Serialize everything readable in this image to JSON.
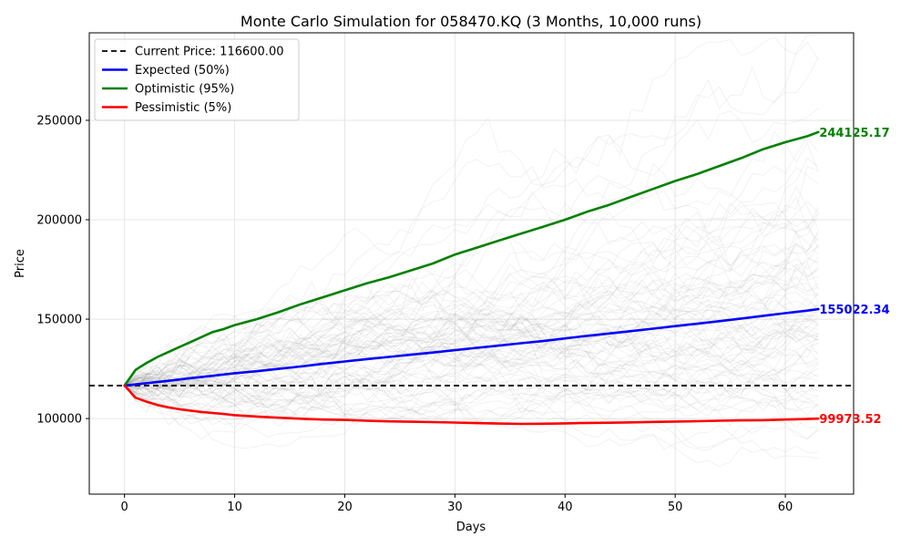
{
  "chart_data": {
    "type": "line",
    "title": "Monte Carlo Simulation for 058470.KQ (3 Months, 10,000 runs)",
    "xlabel": "Days",
    "ylabel": "Price",
    "xlim": [
      -3.2,
      66.2
    ],
    "ylim": [
      62000,
      294000
    ],
    "x_ticks": [
      0,
      10,
      20,
      30,
      40,
      50,
      60
    ],
    "y_ticks": [
      100000,
      150000,
      200000,
      250000
    ],
    "grid": true,
    "legend_position": "upper-left",
    "current_price": {
      "label": "Current Price: 116600.00",
      "value": 116600,
      "color": "#000000",
      "style": "dashed"
    },
    "series": [
      {
        "name": "Expected (50%)",
        "color": "#0000ff",
        "end_label": "155022.34",
        "x": [
          0,
          2,
          4,
          6,
          8,
          10,
          12,
          14,
          16,
          18,
          20,
          22,
          24,
          26,
          28,
          30,
          32,
          34,
          36,
          38,
          40,
          42,
          44,
          46,
          48,
          50,
          52,
          54,
          56,
          58,
          60,
          62,
          63
        ],
        "values": [
          116600,
          117800,
          119000,
          120300,
          121500,
          122800,
          123800,
          125000,
          126200,
          127500,
          128700,
          129900,
          131000,
          132100,
          133200,
          134400,
          135600,
          136700,
          137900,
          139000,
          140300,
          141600,
          142800,
          144000,
          145200,
          146500,
          147700,
          149000,
          150300,
          151700,
          153000,
          154300,
          155022
        ]
      },
      {
        "name": "Optimistic (95%)",
        "color": "#008000",
        "end_label": "244125.17",
        "x": [
          0,
          1,
          2,
          3,
          4,
          5,
          6,
          7,
          8,
          9,
          10,
          12,
          14,
          16,
          18,
          20,
          22,
          24,
          26,
          28,
          30,
          32,
          34,
          36,
          38,
          40,
          42,
          44,
          46,
          48,
          50,
          52,
          54,
          56,
          58,
          60,
          62,
          63
        ],
        "values": [
          116600,
          124500,
          128000,
          131000,
          133500,
          136000,
          138500,
          141000,
          143500,
          145000,
          147000,
          150000,
          153500,
          157500,
          161000,
          164500,
          168000,
          171000,
          174500,
          178000,
          182500,
          186000,
          189500,
          193000,
          196500,
          200000,
          204000,
          207500,
          211500,
          215500,
          219500,
          223000,
          227000,
          231000,
          235500,
          239000,
          242000,
          244125
        ]
      },
      {
        "name": "Pessimistic (5%)",
        "color": "#ff0000",
        "end_label": "99973.52",
        "x": [
          0,
          1,
          2,
          3,
          4,
          5,
          6,
          7,
          8,
          9,
          10,
          12,
          14,
          16,
          18,
          20,
          22,
          24,
          26,
          28,
          30,
          32,
          34,
          36,
          38,
          40,
          42,
          44,
          46,
          48,
          50,
          52,
          54,
          56,
          58,
          60,
          62,
          63
        ],
        "values": [
          116600,
          110500,
          108500,
          106800,
          105600,
          104700,
          104000,
          103300,
          102800,
          102300,
          101700,
          101000,
          100400,
          99900,
          99500,
          99300,
          98900,
          98600,
          98400,
          98200,
          98000,
          97700,
          97500,
          97300,
          97400,
          97600,
          97800,
          97900,
          98100,
          98300,
          98500,
          98700,
          98900,
          99100,
          99200,
          99500,
          99800,
          99973
        ]
      }
    ]
  }
}
